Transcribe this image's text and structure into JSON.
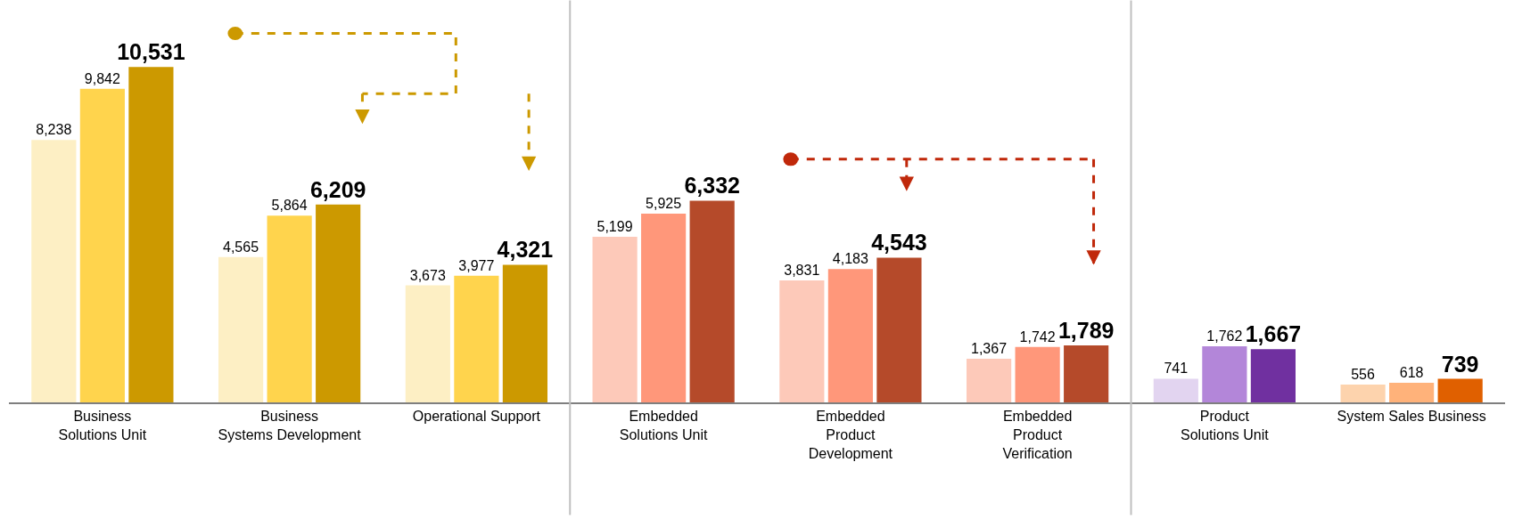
{
  "chart_data": {
    "type": "bar",
    "categories": [
      "Business\nSolutions Unit",
      "Business\nSystems Development",
      "Operational Support",
      "Embedded\nSolutions Unit",
      "Embedded\nProduct\nDevelopment",
      "Embedded\nProduct\nVerification",
      "Product\nSolutions Unit",
      "System Sales Business"
    ],
    "series": [
      {
        "colors": [
          "#fdefc4",
          "#fdefc4",
          "#fdefc4",
          "#fdc9b9",
          "#fdc9b9",
          "#fdc9b9",
          "#e2d4f0",
          "#fdd3ad"
        ],
        "values": [
          8238,
          4565,
          3673,
          5199,
          3831,
          1367,
          741,
          556
        ],
        "value_labels": [
          "8,238",
          "4,565",
          "3,673",
          "5,199",
          "3,831",
          "1,367",
          "741",
          "556"
        ]
      },
      {
        "colors": [
          "#ffd44d",
          "#ffd44d",
          "#ffd44d",
          "#ff977a",
          "#ff977a",
          "#ff977a",
          "#b386d9",
          "#ffb27a"
        ],
        "values": [
          9842,
          5864,
          3977,
          5925,
          4183,
          1742,
          1762,
          618
        ],
        "value_labels": [
          "9,842",
          "5,864",
          "3,977",
          "5,925",
          "4,183",
          "1,742",
          "1,762",
          "618"
        ]
      },
      {
        "colors": [
          "#cc9900",
          "#cc9900",
          "#cc9900",
          "#b54a2a",
          "#b54a2a",
          "#b54a2a",
          "#7030a0",
          "#e06000"
        ],
        "values": [
          10531,
          6209,
          4321,
          6332,
          4543,
          1789,
          1667,
          739
        ],
        "value_labels": [
          "10,531",
          "6,209",
          "4,321",
          "6,332",
          "4,543",
          "1,789",
          "1,667",
          "739"
        ]
      }
    ]
  }
}
